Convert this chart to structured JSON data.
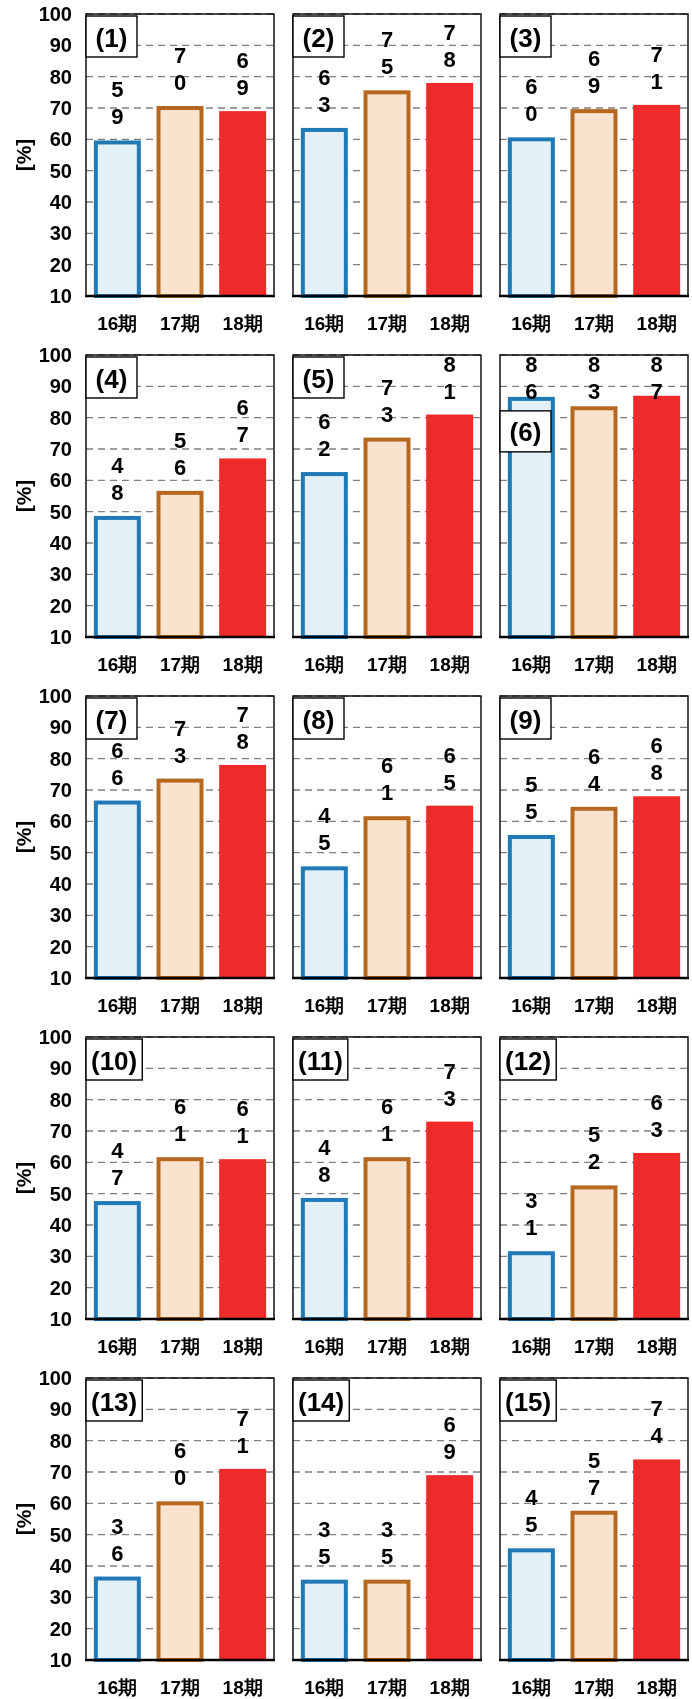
{
  "chart_data": [
    {
      "type": "bar",
      "title": "(1)",
      "ylabel": "[%]",
      "categories": [
        "16期",
        "17期",
        "18期"
      ],
      "values": [
        59,
        70,
        69
      ],
      "colors": [
        "#e4f0f8",
        "#f9e3cf",
        "#ee2a2a"
      ],
      "ylim": [
        10,
        100
      ],
      "yticks": [
        10,
        20,
        30,
        40,
        50,
        60,
        70,
        80,
        90,
        100
      ],
      "grid": "y",
      "data_labels": true
    },
    {
      "type": "bar",
      "title": "(2)",
      "categories": [
        "16期",
        "17期",
        "18期"
      ],
      "values": [
        63,
        75,
        78
      ],
      "colors": [
        "#e4f0f8",
        "#f9e3cf",
        "#ee2a2a"
      ],
      "ylim": [
        10,
        100
      ],
      "yticks": [
        10,
        20,
        30,
        40,
        50,
        60,
        70,
        80,
        90,
        100
      ],
      "grid": "y",
      "data_labels": true,
      "tick_labels": "x"
    },
    {
      "type": "bar",
      "title": "(3)",
      "categories": [
        "16期",
        "17期",
        "18期"
      ],
      "values": [
        60,
        69,
        71
      ],
      "colors": [
        "#e4f0f8",
        "#f9e3cf",
        "#ee2a2a"
      ],
      "ylim": [
        10,
        100
      ],
      "yticks": [
        10,
        20,
        30,
        40,
        50,
        60,
        70,
        80,
        90,
        100
      ],
      "grid": "y",
      "data_labels": true,
      "tick_labels": "x"
    },
    {
      "type": "bar",
      "title": "(4)",
      "ylabel": "[%]",
      "categories": [
        "16期",
        "17期",
        "18期"
      ],
      "values": [
        48,
        56,
        67
      ],
      "colors": [
        "#e4f0f8",
        "#f9e3cf",
        "#ee2a2a"
      ],
      "ylim": [
        10,
        100
      ],
      "yticks": [
        10,
        20,
        30,
        40,
        50,
        60,
        70,
        80,
        90,
        100
      ],
      "grid": "y",
      "data_labels": true
    },
    {
      "type": "bar",
      "title": "(5)",
      "categories": [
        "16期",
        "17期",
        "18期"
      ],
      "values": [
        62,
        73,
        81
      ],
      "colors": [
        "#e4f0f8",
        "#f9e3cf",
        "#ee2a2a"
      ],
      "ylim": [
        10,
        100
      ],
      "yticks": [
        10,
        20,
        30,
        40,
        50,
        60,
        70,
        80,
        90,
        100
      ],
      "grid": "y",
      "data_labels": true,
      "tick_labels": "x"
    },
    {
      "type": "bar",
      "title": "(6)",
      "categories": [
        "16期",
        "17期",
        "18期"
      ],
      "values": [
        86,
        83,
        87
      ],
      "colors": [
        "#e4f0f8",
        "#f9e3cf",
        "#ee2a2a"
      ],
      "ylim": [
        10,
        100
      ],
      "yticks": [
        10,
        20,
        30,
        40,
        50,
        60,
        70,
        80,
        90,
        100
      ],
      "grid": "y",
      "data_labels": true,
      "tick_labels": "x"
    },
    {
      "type": "bar",
      "title": "(7)",
      "ylabel": "[%]",
      "categories": [
        "16期",
        "17期",
        "18期"
      ],
      "values": [
        66,
        73,
        78
      ],
      "colors": [
        "#e4f0f8",
        "#f9e3cf",
        "#ee2a2a"
      ],
      "ylim": [
        10,
        100
      ],
      "yticks": [
        10,
        20,
        30,
        40,
        50,
        60,
        70,
        80,
        90,
        100
      ],
      "grid": "y",
      "data_labels": true
    },
    {
      "type": "bar",
      "title": "(8)",
      "categories": [
        "16期",
        "17期",
        "18期"
      ],
      "values": [
        45,
        61,
        65
      ],
      "colors": [
        "#e4f0f8",
        "#f9e3cf",
        "#ee2a2a"
      ],
      "ylim": [
        10,
        100
      ],
      "yticks": [
        10,
        20,
        30,
        40,
        50,
        60,
        70,
        80,
        90,
        100
      ],
      "grid": "y",
      "data_labels": true,
      "tick_labels": "x"
    },
    {
      "type": "bar",
      "title": "(9)",
      "categories": [
        "16期",
        "17期",
        "18期"
      ],
      "values": [
        55,
        64,
        68
      ],
      "colors": [
        "#e4f0f8",
        "#f9e3cf",
        "#ee2a2a"
      ],
      "ylim": [
        10,
        100
      ],
      "yticks": [
        10,
        20,
        30,
        40,
        50,
        60,
        70,
        80,
        90,
        100
      ],
      "grid": "y",
      "data_labels": true,
      "tick_labels": "x"
    },
    {
      "type": "bar",
      "title": "(10)",
      "ylabel": "[%]",
      "categories": [
        "16期",
        "17期",
        "18期"
      ],
      "values": [
        47,
        61,
        61
      ],
      "colors": [
        "#e4f0f8",
        "#f9e3cf",
        "#ee2a2a"
      ],
      "ylim": [
        10,
        100
      ],
      "yticks": [
        10,
        20,
        30,
        40,
        50,
        60,
        70,
        80,
        90,
        100
      ],
      "grid": "y",
      "data_labels": true
    },
    {
      "type": "bar",
      "title": "(11)",
      "categories": [
        "16期",
        "17期",
        "18期"
      ],
      "values": [
        48,
        61,
        73
      ],
      "colors": [
        "#e4f0f8",
        "#f9e3cf",
        "#ee2a2a"
      ],
      "ylim": [
        10,
        100
      ],
      "yticks": [
        10,
        20,
        30,
        40,
        50,
        60,
        70,
        80,
        90,
        100
      ],
      "grid": "y",
      "data_labels": true,
      "tick_labels": "x"
    },
    {
      "type": "bar",
      "title": "(12)",
      "categories": [
        "16期",
        "17期",
        "18期"
      ],
      "values": [
        31,
        52,
        63
      ],
      "colors": [
        "#e4f0f8",
        "#f9e3cf",
        "#ee2a2a"
      ],
      "ylim": [
        10,
        100
      ],
      "yticks": [
        10,
        20,
        30,
        40,
        50,
        60,
        70,
        80,
        90,
        100
      ],
      "grid": "y",
      "data_labels": true,
      "tick_labels": "x"
    },
    {
      "type": "bar",
      "title": "(13)",
      "ylabel": "[%]",
      "categories": [
        "16期",
        "17期",
        "18期"
      ],
      "values": [
        36,
        60,
        71
      ],
      "colors": [
        "#e4f0f8",
        "#f9e3cf",
        "#ee2a2a"
      ],
      "ylim": [
        10,
        100
      ],
      "yticks": [
        10,
        20,
        30,
        40,
        50,
        60,
        70,
        80,
        90,
        100
      ],
      "grid": "y",
      "data_labels": true
    },
    {
      "type": "bar",
      "title": "(14)",
      "categories": [
        "16期",
        "17期",
        "18期"
      ],
      "values": [
        35,
        35,
        69
      ],
      "colors": [
        "#e4f0f8",
        "#f9e3cf",
        "#ee2a2a"
      ],
      "ylim": [
        10,
        100
      ],
      "yticks": [
        10,
        20,
        30,
        40,
        50,
        60,
        70,
        80,
        90,
        100
      ],
      "grid": "y",
      "data_labels": true,
      "tick_labels": "x"
    },
    {
      "type": "bar",
      "title": "(15)",
      "categories": [
        "16期",
        "17期",
        "18期"
      ],
      "values": [
        45,
        57,
        74
      ],
      "colors": [
        "#e4f0f8",
        "#f9e3cf",
        "#ee2a2a"
      ],
      "ylim": [
        10,
        100
      ],
      "yticks": [
        10,
        20,
        30,
        40,
        50,
        60,
        70,
        80,
        90,
        100
      ],
      "grid": "y",
      "data_labels": true,
      "tick_labels": "x"
    }
  ]
}
